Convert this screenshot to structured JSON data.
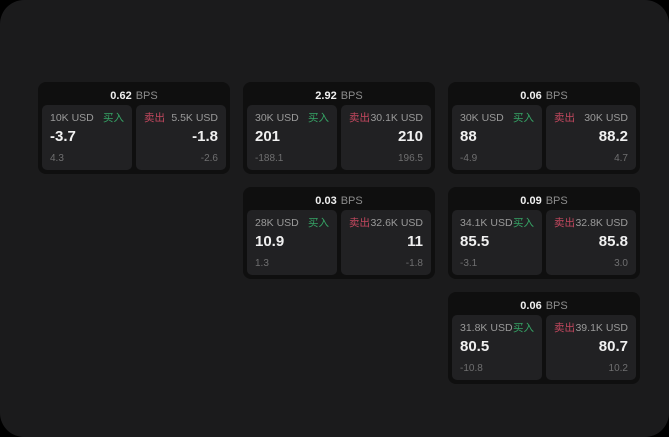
{
  "labels": {
    "unit": "BPS",
    "buy": "买入",
    "sell": "卖出"
  },
  "colors": {
    "window-bg": "#1b1b1c",
    "card-bg": "#0f0f0f",
    "panel-bg": "#212123",
    "value-color": "#f0f0f0",
    "label-color": "#9a9a9a",
    "delta-color": "#6f6f70",
    "unit-color": "#8c8c8c",
    "buy-color": "#36a566",
    "sell-color": "#c4485f"
  },
  "cards": [
    {
      "bps": "0.62",
      "buy": {
        "amount": "10K USD",
        "value": "-3.7",
        "delta": "4.3"
      },
      "sell": {
        "amount": "5.5K USD",
        "value": "-1.8",
        "delta": "-2.6"
      }
    },
    {
      "bps": "2.92",
      "buy": {
        "amount": "30K USD",
        "value": "201",
        "delta": "-188.1"
      },
      "sell": {
        "amount": "30.1K USD",
        "value": "210",
        "delta": "196.5"
      }
    },
    {
      "bps": "0.06",
      "buy": {
        "amount": "30K USD",
        "value": "88",
        "delta": "-4.9"
      },
      "sell": {
        "amount": "30K USD",
        "value": "88.2",
        "delta": "4.7"
      }
    },
    {
      "bps": "0.03",
      "buy": {
        "amount": "28K USD",
        "value": "10.9",
        "delta": "1.3"
      },
      "sell": {
        "amount": "32.6K USD",
        "value": "11",
        "delta": "-1.8"
      }
    },
    {
      "bps": "0.09",
      "buy": {
        "amount": "34.1K USD",
        "value": "85.5",
        "delta": "-3.1"
      },
      "sell": {
        "amount": "32.8K USD",
        "value": "85.8",
        "delta": "3.0"
      }
    },
    {
      "bps": "0.06",
      "buy": {
        "amount": "31.8K USD",
        "value": "80.5",
        "delta": "-10.8"
      },
      "sell": {
        "amount": "39.1K USD",
        "value": "80.7",
        "delta": "10.2"
      }
    }
  ]
}
